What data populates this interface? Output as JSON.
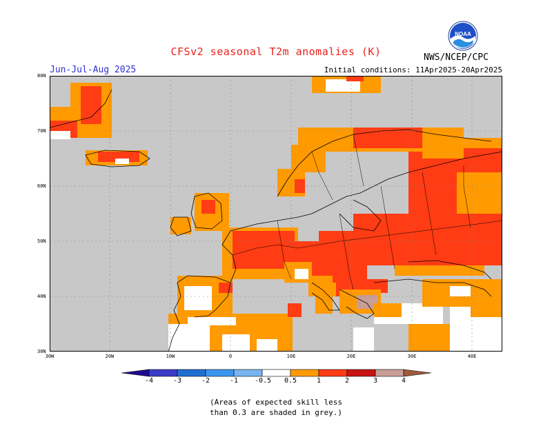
{
  "title": "CFSv2 seasonal T2m anomalies (K)",
  "season": "Jun-Jul-Aug 2025",
  "initial_conditions": "Initial conditions: 11Apr2025-20Apr2025",
  "agency": "NWS/NCEP/CPC",
  "logo": {
    "text": "NOAA",
    "icon": "noaa-logo-icon"
  },
  "map": {
    "lat_labels": [
      "80N",
      "70N",
      "60N",
      "50N",
      "40N",
      "30N"
    ],
    "lon_labels": [
      "30W",
      "20W",
      "10W",
      "0",
      "10E",
      "20E",
      "30E",
      "40E"
    ],
    "land_color": "#c8c8c8",
    "ocean_color": "#c8c8c8",
    "no_anomaly_color": "#ffffff"
  },
  "colorbar": {
    "labels": [
      "-4",
      "-3",
      "-2",
      "-1",
      "-0.5",
      "0.5",
      "1",
      "2",
      "3",
      "4"
    ],
    "colors": [
      "#1f0b8f",
      "#3c3cc8",
      "#1f6fd2",
      "#3c96f0",
      "#78b4f0",
      "#ffffff",
      "#ff9a00",
      "#ff3c14",
      "#c81414",
      "#c89e96",
      "#9e5a3c"
    ]
  },
  "note": {
    "line1": "(Areas of expected skill less",
    "line2": "than 0.3 are shaded in grey.)"
  }
}
